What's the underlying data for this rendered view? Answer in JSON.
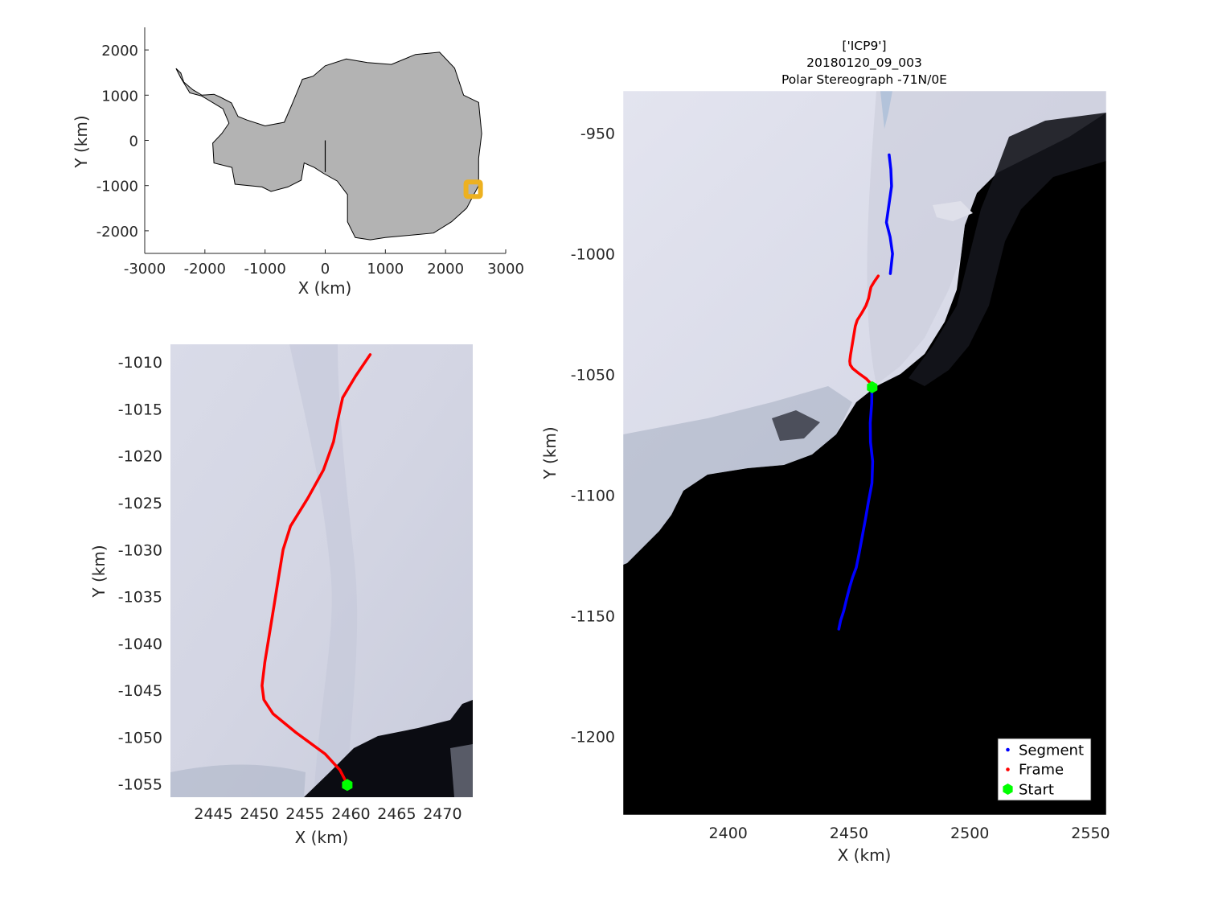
{
  "chart_data": [
    {
      "id": "overview",
      "type": "map",
      "xlabel": "X (km)",
      "ylabel": "Y (km)",
      "xlim": [
        -3000,
        3000
      ],
      "ylim": [
        -2500,
        2500
      ],
      "xticks": [
        -3000,
        -2000,
        -1000,
        0,
        1000,
        2000,
        3000
      ],
      "yticks": [
        -2000,
        -1000,
        0,
        1000,
        2000
      ],
      "land_color": "#b3b3b3",
      "marker_color": "#edb120",
      "marker_center": [
        2460,
        -1080
      ],
      "prime_meridian_line": [
        [
          0,
          0
        ],
        [
          0,
          -700
        ]
      ],
      "coastline_km": [
        [
          -2480,
          1590
        ],
        [
          -2400,
          1490
        ],
        [
          -2350,
          1290
        ],
        [
          -2200,
          1120
        ],
        [
          -2050,
          1000
        ],
        [
          -1850,
          1020
        ],
        [
          -1750,
          960
        ],
        [
          -1560,
          830
        ],
        [
          -1450,
          530
        ],
        [
          -1300,
          450
        ],
        [
          -1000,
          320
        ],
        [
          -680,
          400
        ],
        [
          -550,
          800
        ],
        [
          -380,
          1350
        ],
        [
          -200,
          1420
        ],
        [
          0,
          1650
        ],
        [
          350,
          1800
        ],
        [
          700,
          1720
        ],
        [
          1100,
          1680
        ],
        [
          1500,
          1900
        ],
        [
          1900,
          1950
        ],
        [
          2150,
          1600
        ],
        [
          2300,
          1000
        ],
        [
          2550,
          840
        ],
        [
          2600,
          150
        ],
        [
          2550,
          -400
        ],
        [
          2550,
          -1000
        ],
        [
          2450,
          -1250
        ],
        [
          2350,
          -1500
        ],
        [
          2100,
          -1800
        ],
        [
          1800,
          -2050
        ],
        [
          1400,
          -2100
        ],
        [
          1000,
          -2150
        ],
        [
          750,
          -2200
        ],
        [
          500,
          -2150
        ],
        [
          370,
          -1800
        ],
        [
          370,
          -1200
        ],
        [
          200,
          -900
        ],
        [
          -30,
          -730
        ],
        [
          -180,
          -600
        ],
        [
          -350,
          -500
        ],
        [
          -400,
          -880
        ],
        [
          -620,
          -1030
        ],
        [
          -900,
          -1130
        ],
        [
          -1050,
          -1030
        ],
        [
          -1500,
          -970
        ],
        [
          -1550,
          -600
        ],
        [
          -1850,
          -500
        ],
        [
          -1870,
          -60
        ],
        [
          -1720,
          150
        ],
        [
          -1600,
          380
        ],
        [
          -1700,
          700
        ],
        [
          -2050,
          980
        ],
        [
          -2250,
          1050
        ],
        [
          -2400,
          1380
        ],
        [
          -2480,
          1590
        ]
      ]
    },
    {
      "id": "zoom",
      "type": "map",
      "xlabel": "X (km)",
      "ylabel": "Y (km)",
      "xlim": [
        2440.3,
        2473.3
      ],
      "ylim": [
        -1056.4,
        -1008.1
      ],
      "xticks": [
        2445,
        2450,
        2455,
        2460,
        2465,
        2470
      ],
      "yticks": [
        -1055,
        -1050,
        -1045,
        -1040,
        -1035,
        -1030,
        -1025,
        -1020,
        -1015,
        -1010
      ],
      "frame_color": "#ff0000",
      "start_color": "#00ff00",
      "frame": [
        [
          2462.1,
          -1009.2
        ],
        [
          2460.5,
          -1011.5
        ],
        [
          2459.1,
          -1013.8
        ],
        [
          2458.6,
          -1016.0
        ],
        [
          2458.1,
          -1018.5
        ],
        [
          2457.0,
          -1021.5
        ],
        [
          2455.3,
          -1024.5
        ],
        [
          2453.4,
          -1027.5
        ],
        [
          2452.6,
          -1030.0
        ],
        [
          2452.1,
          -1033.0
        ],
        [
          2451.6,
          -1036.0
        ],
        [
          2451.1,
          -1039.0
        ],
        [
          2450.6,
          -1042.0
        ],
        [
          2450.3,
          -1044.5
        ],
        [
          2450.5,
          -1046.0
        ],
        [
          2451.5,
          -1047.5
        ],
        [
          2454.0,
          -1049.5
        ],
        [
          2457.2,
          -1051.8
        ],
        [
          2458.8,
          -1053.5
        ],
        [
          2459.6,
          -1055.0
        ]
      ],
      "start": [
        2459.6,
        -1055.1
      ]
    },
    {
      "id": "main",
      "type": "map",
      "title_lines": [
        "['ICP9']",
        "20180120_09_003",
        "Polar Stereograph -71N/0E"
      ],
      "xlabel": "X (km)",
      "ylabel": "Y (km)",
      "xlim": [
        2356.5,
        2556.5
      ],
      "ylim": [
        -1232.5,
        -932.5
      ],
      "xticks": [
        2400,
        2450,
        2500,
        2550
      ],
      "yticks": [
        -1200,
        -1150,
        -1100,
        -1050,
        -1000,
        -950
      ],
      "segment_color": "#0000ff",
      "frame_color": "#ff0000",
      "start_color": "#00ff00",
      "segment": [
        [
          2467.1,
          -1008.2
        ],
        [
          2468.0,
          -1000.0
        ],
        [
          2467.0,
          -993.0
        ],
        [
          2465.5,
          -987.0
        ],
        [
          2466.5,
          -980.0
        ],
        [
          2467.6,
          -972.0
        ],
        [
          2467.3,
          -965.0
        ],
        [
          2466.6,
          -959.0
        ],
        [
          2459.5,
          -1055.0
        ],
        [
          2459.4,
          -1062.0
        ],
        [
          2458.8,
          -1070.0
        ],
        [
          2458.9,
          -1078.0
        ],
        [
          2459.8,
          -1086.0
        ],
        [
          2459.5,
          -1095.0
        ],
        [
          2458.0,
          -1103.0
        ],
        [
          2456.8,
          -1110.0
        ],
        [
          2455.5,
          -1117.0
        ],
        [
          2454.2,
          -1124.0
        ],
        [
          2453.0,
          -1130.0
        ],
        [
          2451.5,
          -1134.0
        ],
        [
          2450.3,
          -1138.0
        ],
        [
          2449.0,
          -1143.0
        ],
        [
          2447.8,
          -1148.0
        ],
        [
          2446.5,
          -1152.0
        ],
        [
          2445.8,
          -1155.5
        ]
      ],
      "frame": [
        [
          2462.1,
          -1009.2
        ],
        [
          2460.5,
          -1011.5
        ],
        [
          2459.1,
          -1013.8
        ],
        [
          2458.6,
          -1016.0
        ],
        [
          2458.1,
          -1018.5
        ],
        [
          2457.0,
          -1021.5
        ],
        [
          2455.3,
          -1024.5
        ],
        [
          2453.4,
          -1027.5
        ],
        [
          2452.6,
          -1030.0
        ],
        [
          2452.1,
          -1033.0
        ],
        [
          2451.6,
          -1036.0
        ],
        [
          2451.1,
          -1039.0
        ],
        [
          2450.6,
          -1042.0
        ],
        [
          2450.3,
          -1044.5
        ],
        [
          2450.5,
          -1046.0
        ],
        [
          2451.5,
          -1047.5
        ],
        [
          2454.0,
          -1049.5
        ],
        [
          2457.2,
          -1051.8
        ],
        [
          2458.8,
          -1053.5
        ],
        [
          2459.6,
          -1055.0
        ]
      ],
      "start": [
        2459.6,
        -1055.3
      ],
      "legend": [
        "Segment",
        "Frame",
        "Start"
      ],
      "legend_position": "bottom-right"
    }
  ]
}
